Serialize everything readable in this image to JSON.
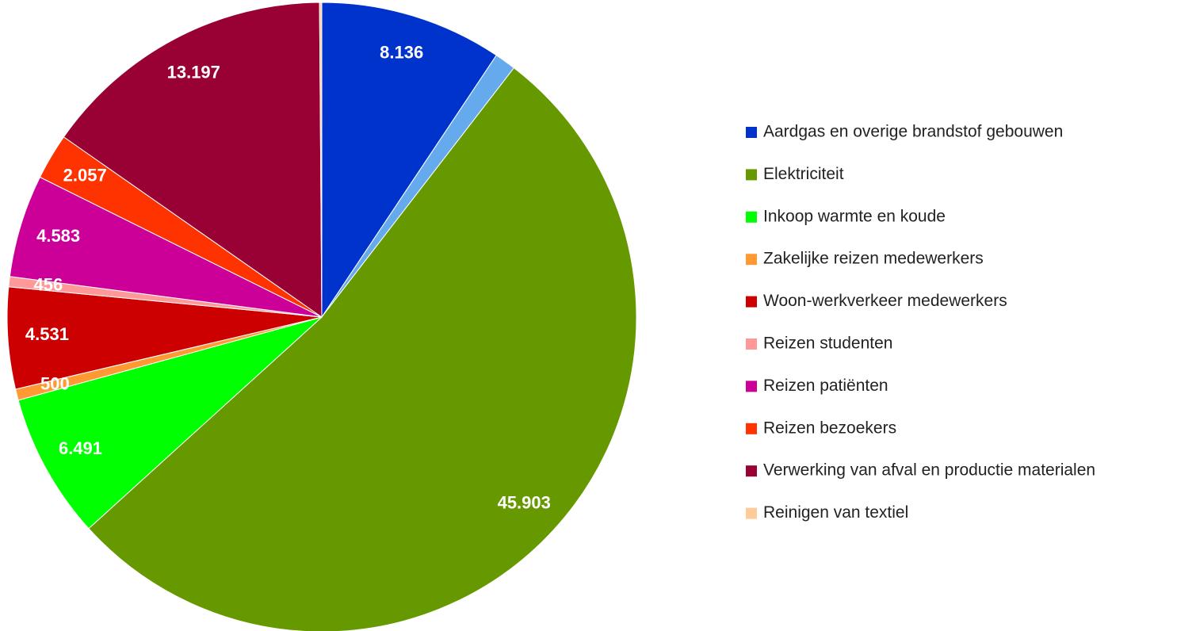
{
  "chart_data": {
    "type": "pie",
    "categories": [
      "Aardgas en overige brandstof gebouwen",
      null,
      "Elektriciteit",
      "Inkoop warmte en koude",
      "Zakelijke reizen medewerkers",
      "Woon-werkverkeer medewerkers",
      "Reizen studenten",
      "Reizen patiënten",
      "Reizen bezoekers",
      "Verwerking van afval en productie materialen",
      "Reinigen van textiel"
    ],
    "values": [
      8136,
      950,
      45903,
      6491,
      500,
      4531,
      456,
      4583,
      2057,
      13197,
      100
    ],
    "value_labels": [
      "8.136",
      null,
      "45.903",
      "6.491",
      "500",
      "4.531",
      "456",
      "4.583",
      "2.057",
      "13.197",
      null
    ],
    "colors": [
      "#0033cc",
      "#66aaee",
      "#669900",
      "#00ff00",
      "#ff9933",
      "#cc0000",
      "#ff9999",
      "#cc0099",
      "#ff3300",
      "#990033",
      "#ffcc99"
    ],
    "legend": "right"
  }
}
